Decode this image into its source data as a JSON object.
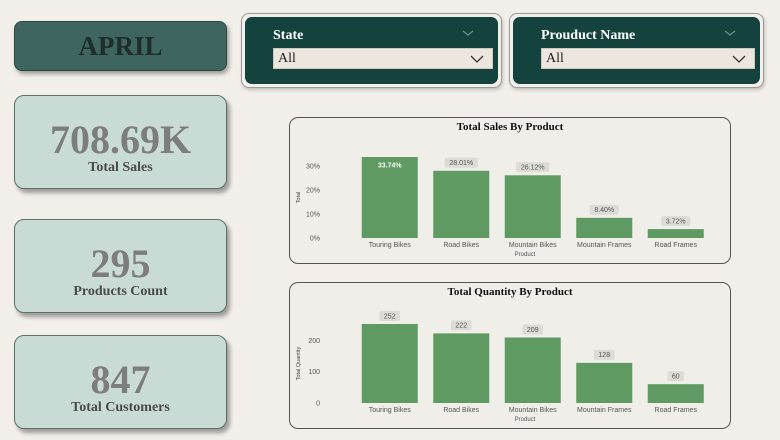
{
  "header": {
    "month": "APRIL"
  },
  "filters": {
    "state": {
      "label": "State",
      "value": "All"
    },
    "product": {
      "label": "Prouduct Name",
      "value": "All"
    }
  },
  "kpis": [
    {
      "value": "708.69K",
      "label": "Total Sales"
    },
    {
      "value": "295",
      "label": "Products Count"
    },
    {
      "value": "847",
      "label": "Total Customers"
    }
  ],
  "colors": {
    "bar": "#5f9a62",
    "slicer": "#14433d",
    "kpi_bg": "#c8dcd5"
  },
  "chart_data": [
    {
      "type": "bar",
      "title": "Total Sales By Product",
      "xlabel": "Product",
      "ylabel": "Total",
      "categories": [
        "Touring Bikes",
        "Road Bikes",
        "Mountain Bikes",
        "Mountain Frames",
        "Road Frames"
      ],
      "values": [
        33.74,
        28.01,
        26.12,
        8.4,
        3.72
      ],
      "data_labels": [
        "33.74%",
        "28.01%",
        "26.12%",
        "8.40%",
        "3.72%"
      ],
      "ylim": [
        0,
        33.74
      ],
      "yticks": [
        0,
        10,
        20,
        30
      ],
      "ytick_labels": [
        "0%",
        "10%",
        "20%",
        "30%"
      ],
      "grid": false
    },
    {
      "type": "bar",
      "title": "Total Quantity By Product",
      "xlabel": "Product",
      "ylabel": "Total Quantity",
      "categories": [
        "Touring Bikes",
        "Road Bikes",
        "Mountain Bikes",
        "Mountain Frames",
        "Road Frames"
      ],
      "values": [
        252,
        222,
        209,
        128,
        60
      ],
      "data_labels": [
        "252",
        "222",
        "209",
        "128",
        "60"
      ],
      "ylim": [
        0,
        252
      ],
      "yticks": [
        0,
        100,
        200
      ],
      "ytick_labels": [
        "0",
        "100",
        "200"
      ],
      "grid": false
    }
  ]
}
